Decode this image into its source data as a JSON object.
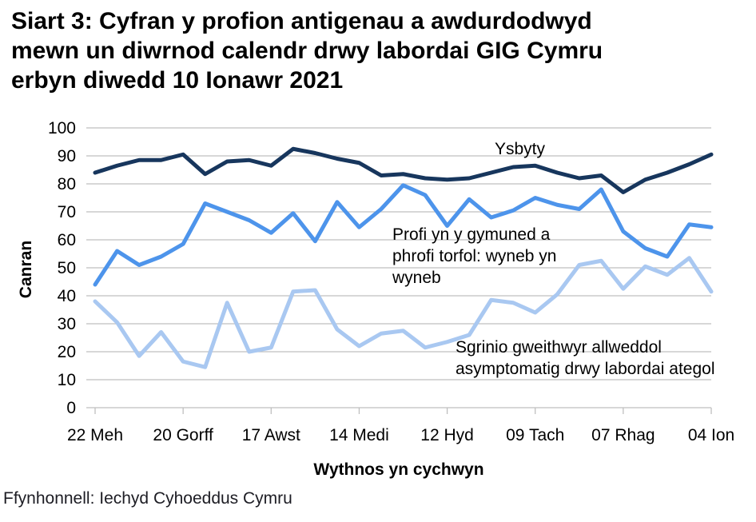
{
  "title_full": "Siart 3: Cyfran y profion antigenau a awdurdodwyd mewn un diwrnod calendr drwy labordai GIG Cymru erbyn diwedd 10 Ionawr 2021",
  "title_lines": [
    "Siart 3: Cyfran y profion antigenau a awdurdodwyd",
    "mewn un diwrnod calendr drwy labordai GIG Cymru",
    "erbyn diwedd 10 Ionawr 2021"
  ],
  "source": "Ffynhonnell: Iechyd Cyhoeddus Cymru",
  "colors": {
    "gridline": "#bfbfbf",
    "text": "#000000",
    "ysbyty_line": "#17365d",
    "profi_line": "#4d94eb",
    "sgrinio_line": "#a9c8f1"
  },
  "chart_data": {
    "type": "line",
    "xlabel": "Wythnos yn cychwyn",
    "ylabel": "Canran",
    "ylim": [
      0,
      100
    ],
    "y_ticks": [
      0,
      10,
      20,
      30,
      40,
      50,
      60,
      70,
      80,
      90,
      100
    ],
    "grid": "horizontal",
    "n_points": 29,
    "x_tick_labels": [
      "22 Meh",
      "20 Gorff",
      "17 Awst",
      "14 Medi",
      "12 Hyd",
      "09 Tach",
      "07 Rhag",
      "04 Ion"
    ],
    "x_tick_indices": [
      0,
      4,
      8,
      12,
      16,
      20,
      24,
      28
    ],
    "series": [
      {
        "id": "ysbyty",
        "name": "Ysbyty",
        "color": "#17365d",
        "values": [
          84,
          86.5,
          88.5,
          88.5,
          90.5,
          83.5,
          88,
          88.5,
          86.5,
          92.5,
          91,
          89,
          87.5,
          83,
          83.5,
          82,
          81.5,
          82,
          84,
          86,
          86.5,
          84,
          82,
          83,
          77,
          81.5,
          84,
          87,
          90.5
        ]
      },
      {
        "id": "profi",
        "name": "Profi yn y gymuned a phrofi torfol: wyneb yn wyneb",
        "color": "#4d94eb",
        "values": [
          44,
          56,
          51,
          54,
          58.5,
          73,
          70,
          67,
          62.5,
          69.5,
          59.5,
          73.5,
          64.5,
          71,
          79.5,
          76,
          65,
          74.5,
          68,
          70.5,
          75,
          72.5,
          71,
          78,
          63,
          57,
          54,
          65.5,
          64.5
        ]
      },
      {
        "id": "sgrinio",
        "name": "Sgrinio gweithwyr allweddol asymptomatig drwy labordai ategol",
        "color": "#a9c8f1",
        "values": [
          38,
          30.5,
          18.5,
          27,
          16.5,
          14.5,
          37.5,
          20,
          21.5,
          41.5,
          42,
          28,
          22,
          26.5,
          27.5,
          21.5,
          23.5,
          26,
          38.5,
          37.5,
          34,
          40.5,
          51,
          52.5,
          42.5,
          50.5,
          47.5,
          53.5,
          41.5
        ]
      }
    ],
    "annotations": [
      {
        "lines": [
          "Ysbyty"
        ]
      },
      {
        "lines": [
          "Profi yn y gymuned a",
          "phrofi torfol: wyneb yn",
          "wyneb"
        ]
      },
      {
        "lines": [
          "Sgrinio gweithwyr allweddol",
          "asymptomatig drwy labordai ategol"
        ]
      }
    ]
  }
}
